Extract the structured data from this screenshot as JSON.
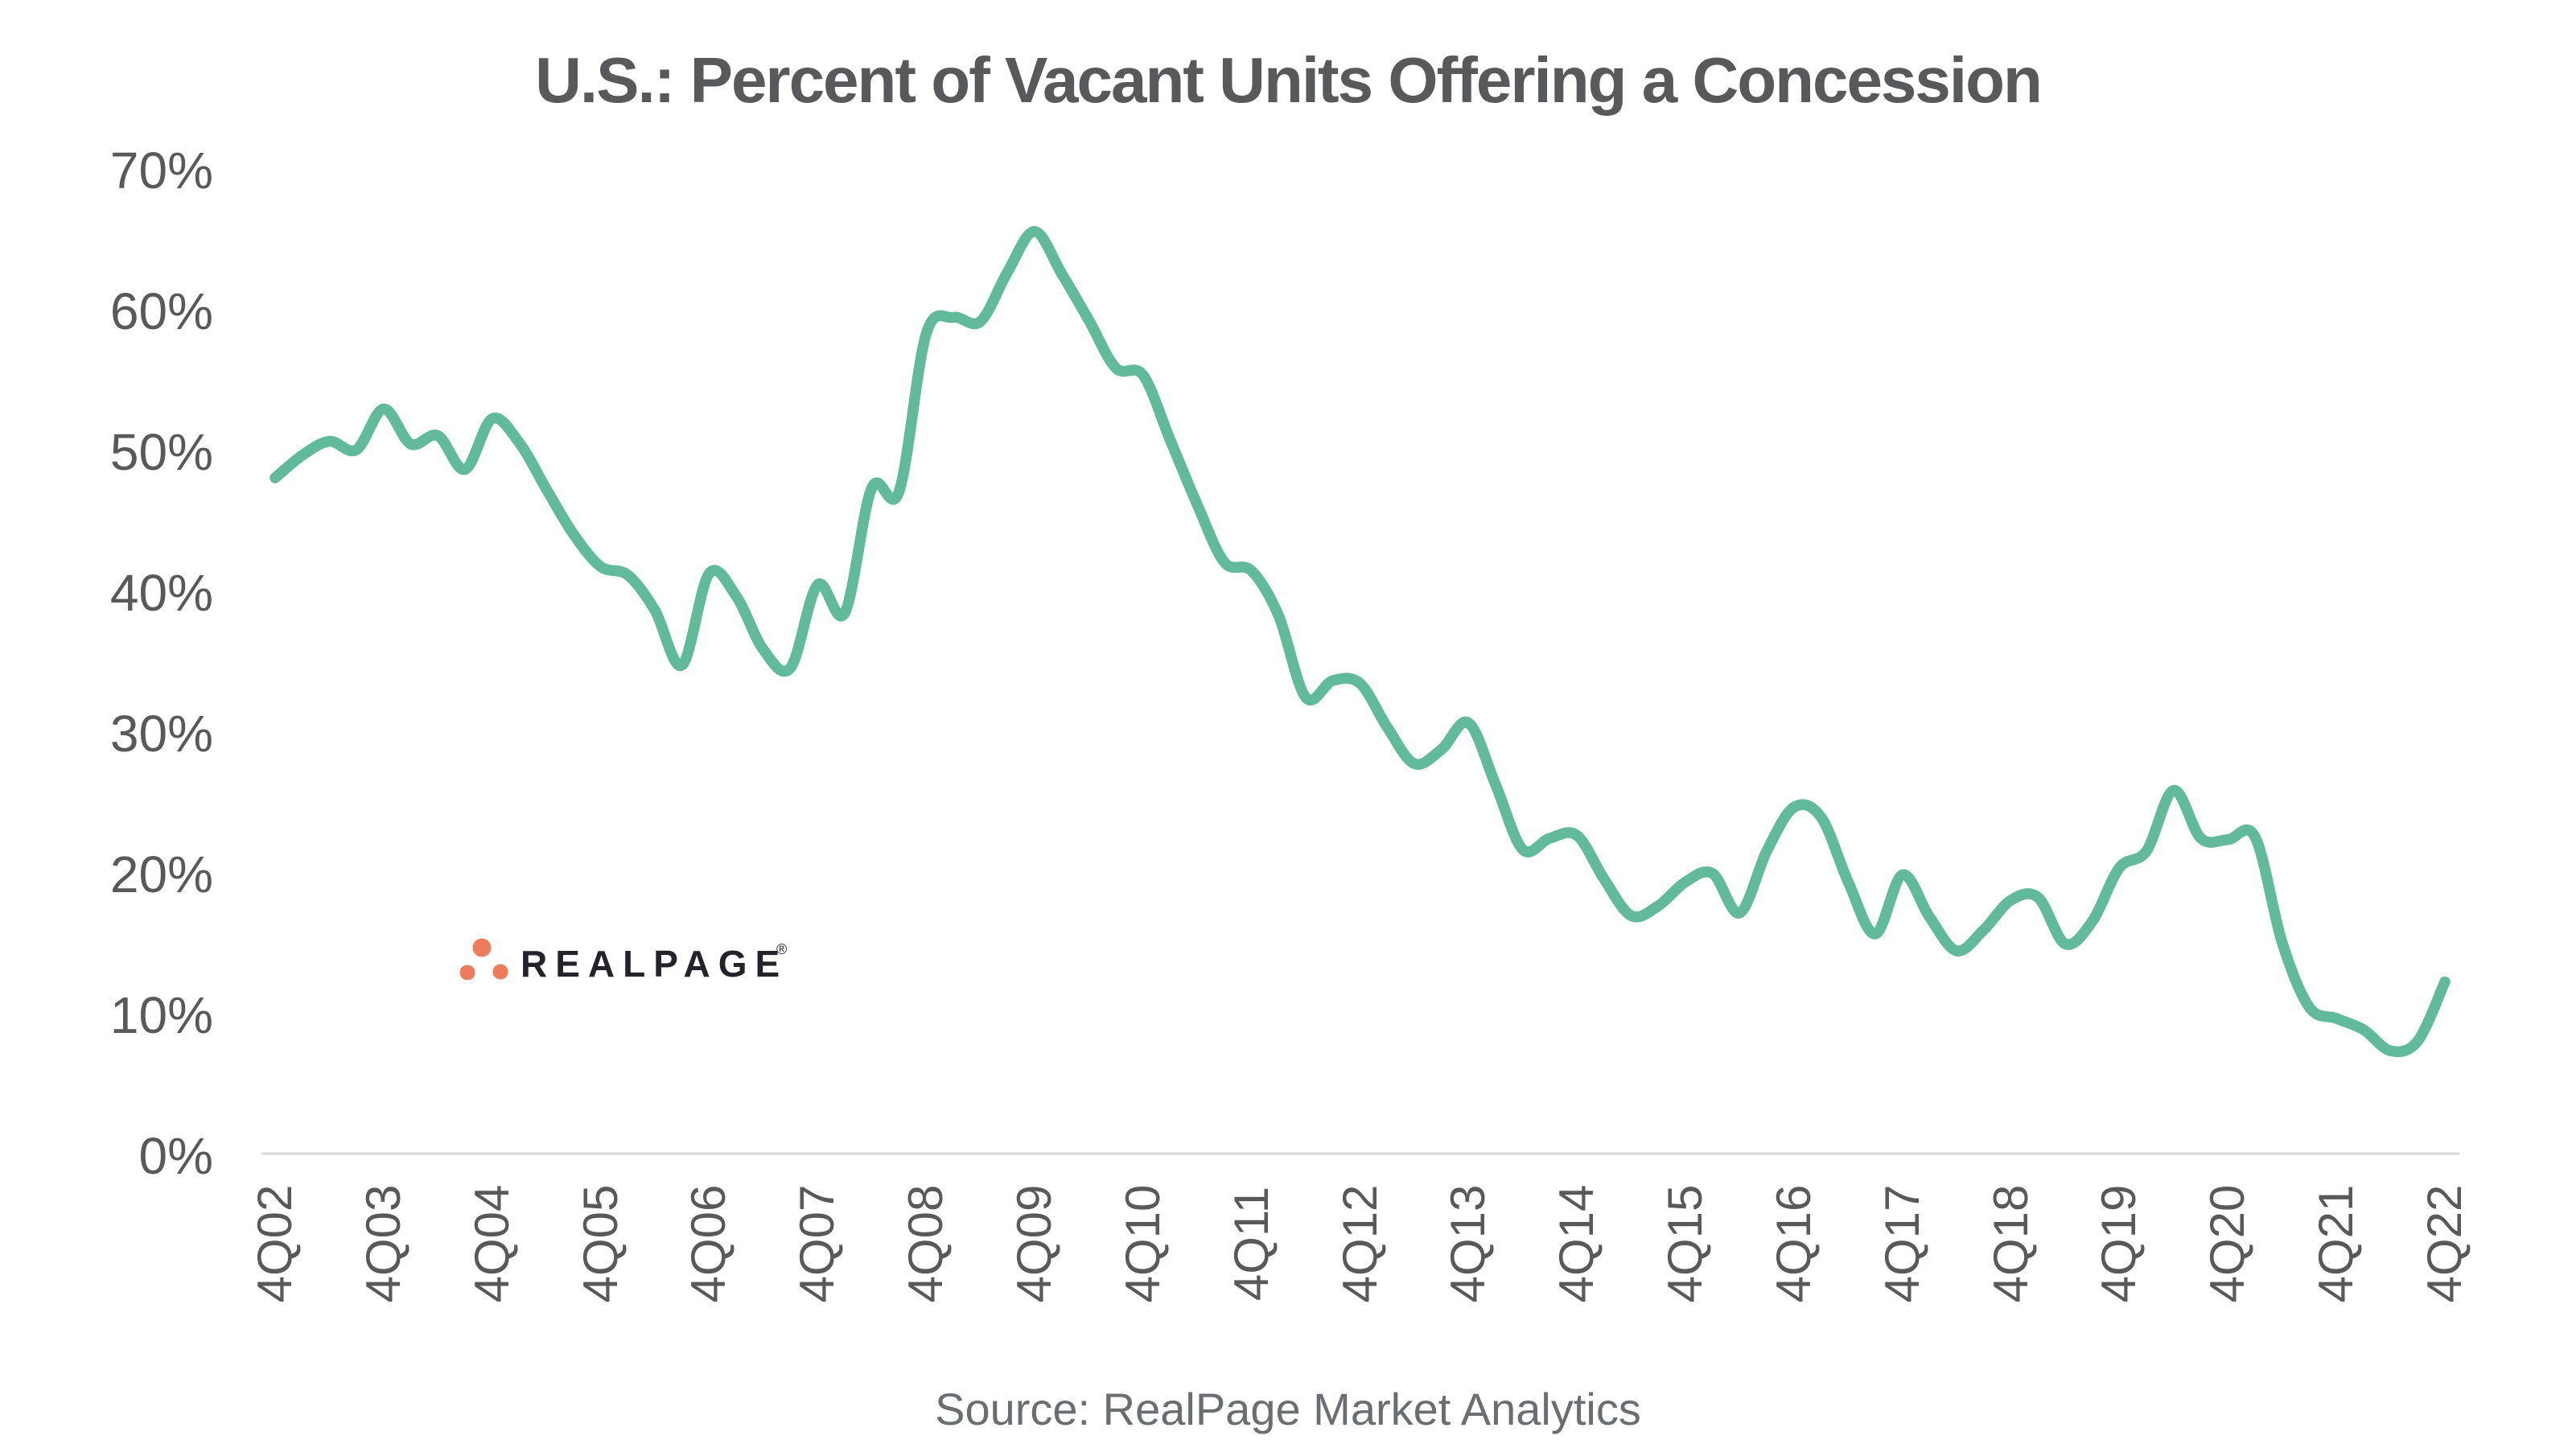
{
  "page": {
    "background_color": "#FFFFFF"
  },
  "title": {
    "text": "U.S.: Percent of Vacant Units Offering a Concession",
    "color": "#58595B"
  },
  "source_note": {
    "text": "Source: RealPage Market Analytics",
    "color": "#6A6E71"
  },
  "logo": {
    "brand_text": "REALPAGE",
    "registered_mark": "®",
    "dots_color": "#EE7B5C",
    "text_color": "#23242A"
  },
  "chart_data": {
    "type": "line",
    "title": "U.S.: Percent of Vacant Units Offering a Concession",
    "xlabel": "",
    "ylabel": "",
    "x_axis_tick_labels": [
      "4Q02",
      "4Q03",
      "4Q04",
      "4Q05",
      "4Q06",
      "4Q07",
      "4Q08",
      "4Q09",
      "4Q10",
      "4Q11",
      "4Q12",
      "4Q13",
      "4Q14",
      "4Q15",
      "4Q16",
      "4Q17",
      "4Q18",
      "4Q19",
      "4Q20",
      "4Q21",
      "4Q22"
    ],
    "y_axis": {
      "ticks": [
        "0%",
        "10%",
        "20%",
        "30%",
        "40%",
        "50%",
        "60%",
        "70%"
      ],
      "min": 0,
      "max": 70,
      "unit": "%"
    },
    "grid": {
      "horizontal_gridlines": false,
      "vertical_gridlines": false,
      "baseline_only": true
    },
    "legend": {
      "shown": false
    },
    "line_color": "#61BA99",
    "axis_label_color": "#58595B",
    "baseline_color": "#D9D9D9",
    "quarters": [
      "4Q02",
      "1Q03",
      "2Q03",
      "3Q03",
      "4Q03",
      "1Q04",
      "2Q04",
      "3Q04",
      "4Q04",
      "1Q05",
      "2Q05",
      "3Q05",
      "4Q05",
      "1Q06",
      "2Q06",
      "3Q06",
      "4Q06",
      "1Q07",
      "2Q07",
      "3Q07",
      "4Q07",
      "1Q08",
      "2Q08",
      "3Q08",
      "4Q08",
      "1Q09",
      "2Q09",
      "3Q09",
      "4Q09",
      "1Q10",
      "2Q10",
      "3Q10",
      "4Q10",
      "1Q11",
      "2Q11",
      "3Q11",
      "4Q11",
      "1Q12",
      "2Q12",
      "3Q12",
      "4Q12",
      "1Q13",
      "2Q13",
      "3Q13",
      "4Q13",
      "1Q14",
      "2Q14",
      "3Q14",
      "4Q14",
      "1Q15",
      "2Q15",
      "3Q15",
      "4Q15",
      "1Q16",
      "2Q16",
      "3Q16",
      "4Q16",
      "1Q17",
      "2Q17",
      "3Q17",
      "4Q17",
      "1Q18",
      "2Q18",
      "3Q18",
      "4Q18",
      "1Q19",
      "2Q19",
      "3Q19",
      "4Q19",
      "1Q20",
      "2Q20",
      "3Q20",
      "4Q20",
      "1Q21",
      "2Q21",
      "3Q21",
      "4Q21",
      "1Q22",
      "2Q22",
      "3Q22",
      "4Q22"
    ],
    "series": [
      {
        "name": "Percent of vacant units offering a concession",
        "values": [
          48.0,
          49.6,
          50.6,
          50.0,
          52.9,
          50.4,
          51.0,
          48.6,
          52.2,
          50.5,
          47.2,
          44.0,
          41.7,
          41.1,
          38.6,
          34.7,
          41.2,
          39.6,
          35.8,
          34.5,
          40.4,
          38.4,
          47.3,
          47.0,
          58.2,
          59.4,
          59.1,
          62.6,
          65.5,
          62.5,
          59.2,
          55.8,
          55.3,
          50.7,
          46.1,
          42.0,
          41.4,
          38.2,
          32.4,
          33.6,
          33.4,
          30.3,
          27.7,
          28.7,
          30.6,
          26.2,
          21.6,
          22.4,
          22.6,
          19.5,
          16.9,
          17.6,
          19.3,
          19.9,
          17.1,
          21.5,
          24.6,
          23.9,
          19.3,
          15.6,
          19.8,
          16.8,
          14.4,
          15.9,
          18.0,
          18.2,
          14.9,
          16.5,
          20.3,
          21.5,
          25.8,
          22.4,
          22.3,
          22.5,
          15.0,
          10.4,
          9.6,
          8.8,
          7.3,
          8.0,
          12.2
        ]
      }
    ]
  }
}
